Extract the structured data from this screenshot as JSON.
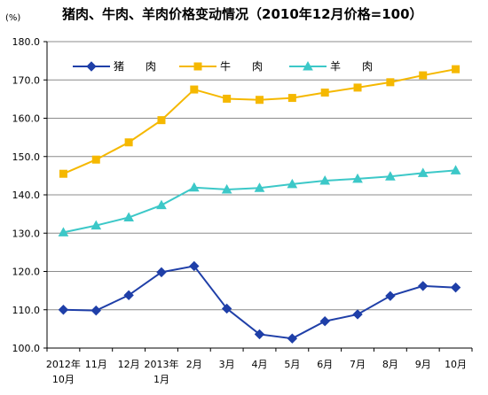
{
  "chart_data": {
    "type": "line",
    "title": "猪肉、牛肉、羊肉价格变动情况（2010年12月价格=100）",
    "unit": "(%)",
    "ylim": [
      100,
      180
    ],
    "y_ticks": [
      "100.0",
      "110.0",
      "120.0",
      "130.0",
      "140.0",
      "150.0",
      "160.0",
      "170.0",
      "180.0"
    ],
    "categories": [
      [
        "2012年",
        "10月"
      ],
      [
        "11月"
      ],
      [
        "12月"
      ],
      [
        "2013年",
        "1月"
      ],
      [
        "2月"
      ],
      [
        "3月"
      ],
      [
        "4月"
      ],
      [
        "5月"
      ],
      [
        "6月"
      ],
      [
        "7月"
      ],
      [
        "8月"
      ],
      [
        "9月"
      ],
      [
        "10月"
      ]
    ],
    "grid": "horizontal",
    "legend_position": "top-left",
    "series": [
      {
        "name": "猪　　肉",
        "color": "#1F3FA8",
        "marker": "diamond",
        "values": [
          110.0,
          109.8,
          113.8,
          119.8,
          121.4,
          110.3,
          103.6,
          102.5,
          107.0,
          108.8,
          113.6,
          116.2,
          115.8
        ]
      },
      {
        "name": "牛　　肉",
        "color": "#F5B800",
        "marker": "square",
        "values": [
          145.5,
          149.2,
          153.7,
          159.5,
          167.5,
          165.1,
          164.8,
          165.3,
          166.7,
          168.0,
          169.4,
          171.2,
          172.8
        ]
      },
      {
        "name": "羊　　肉",
        "color": "#3CC8C8",
        "marker": "triangle",
        "values": [
          130.2,
          132.0,
          134.1,
          137.3,
          141.9,
          141.4,
          141.8,
          142.8,
          143.7,
          144.2,
          144.8,
          145.7,
          146.4
        ]
      }
    ]
  }
}
